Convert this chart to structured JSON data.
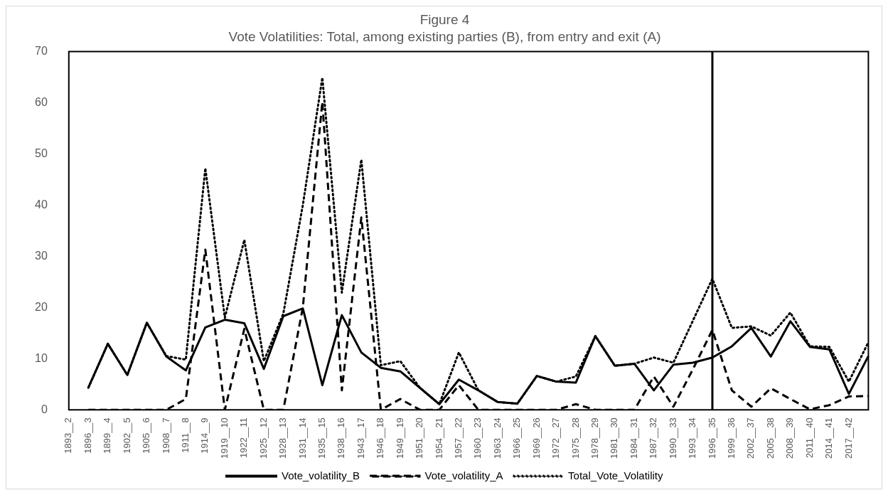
{
  "chart_data": {
    "type": "line",
    "title": "Figure 4",
    "subtitle": "Vote Volatilities: Total, among existing parties (B), from entry and exit (A)",
    "categories": [
      "1893__2",
      "1896__3",
      "1899__4",
      "1902__5",
      "1905__6",
      "1908__7",
      "1911__8",
      "1914__9",
      "1919__10",
      "1922__11",
      "1925__12",
      "1928__13",
      "1931__14",
      "1935__15",
      "1938__16",
      "1943__17",
      "1946__18",
      "1949__19",
      "1951__20",
      "1954__21",
      "1957__22",
      "1960__23",
      "1963__24",
      "1966__25",
      "1969__26",
      "1972__27",
      "1975__28",
      "1978__29",
      "1981__30",
      "1984__31",
      "1987__32",
      "1990__33",
      "1993__34",
      "1996__35",
      "1999__36",
      "2002__37",
      "2005__38",
      "2008__39",
      "2011__40",
      "2014__41",
      "2017__42",
      null
    ],
    "series": [
      {
        "name": "Vote_volatility_B",
        "color": "#000000",
        "line_style": "solid",
        "values": [
          null,
          4.3,
          12.9,
          6.8,
          17.0,
          10.4,
          7.7,
          16.1,
          17.6,
          16.9,
          8.0,
          18.3,
          19.8,
          4.8,
          18.5,
          11.2,
          8.2,
          7.5,
          4.3,
          1.1,
          5.9,
          3.8,
          1.5,
          1.2,
          6.6,
          5.5,
          5.3,
          14.4,
          8.6,
          9.0,
          3.8,
          8.8,
          9.2,
          10.2,
          12.4,
          16.0,
          10.4,
          17.3,
          12.3,
          11.8,
          3.1,
          10.5
        ]
      },
      {
        "name": "Vote_volatility_A",
        "color": "#000000",
        "line_style": "dashed",
        "values": [
          null,
          0,
          0,
          0,
          0,
          0,
          2.1,
          31.3,
          0,
          15.8,
          0,
          0,
          20,
          60.2,
          3.8,
          37.6,
          0,
          2.1,
          0,
          0,
          4.8,
          0,
          0,
          0,
          0,
          0,
          1.1,
          0,
          0,
          0,
          6.5,
          0.6,
          7.9,
          15.6,
          3.8,
          0.6,
          4.2,
          2.1,
          0.1,
          0.9,
          2.6,
          2.7
        ]
      },
      {
        "name": "Total_Vote_Volatility",
        "color": "#000000",
        "line_style": "dotted",
        "values": [
          null,
          4.3,
          12.9,
          6.8,
          17.0,
          10.5,
          9.8,
          47.2,
          18.0,
          33.2,
          9.5,
          18.8,
          40,
          64.9,
          22.9,
          48.9,
          8.7,
          9.5,
          4.3,
          1.1,
          11.2,
          3.8,
          1.5,
          1.2,
          6.6,
          5.5,
          6.5,
          14.4,
          8.6,
          9.0,
          10.2,
          9.2,
          17.4,
          25.6,
          16.0,
          16.3,
          14.5,
          19.0,
          12.4,
          12.3,
          5.5,
          13.2
        ]
      }
    ],
    "ylim": [
      0,
      70
    ],
    "yticks": [
      0,
      10,
      20,
      30,
      40,
      50,
      60,
      70
    ],
    "grid": false,
    "legend": "bottom",
    "marker": "none",
    "ref_lines": [
      {
        "axis": "x",
        "value": "1996__35",
        "color": "#000000",
        "line_style": "solid"
      }
    ]
  }
}
